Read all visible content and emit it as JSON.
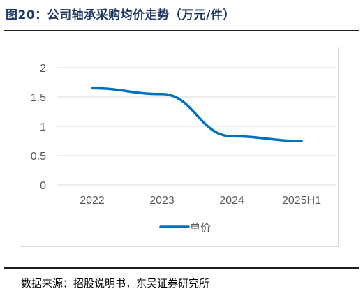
{
  "figure": {
    "title": "图20：公司轴承采购均价走势（万元/件）",
    "source": "数据来源：招股说明书，东吴证券研究所"
  },
  "chart_data": {
    "type": "line",
    "categories": [
      "2022",
      "2023",
      "2024",
      "2025H1"
    ],
    "series": [
      {
        "name": "单价",
        "values": [
          1.65,
          1.55,
          0.83,
          0.75
        ],
        "color": "#0070c0"
      }
    ],
    "yticks": [
      "0",
      "0.5",
      "1",
      "1.5",
      "2"
    ],
    "ylim": [
      0,
      2
    ],
    "grid": true,
    "legend": "bottom",
    "smooth": true
  }
}
